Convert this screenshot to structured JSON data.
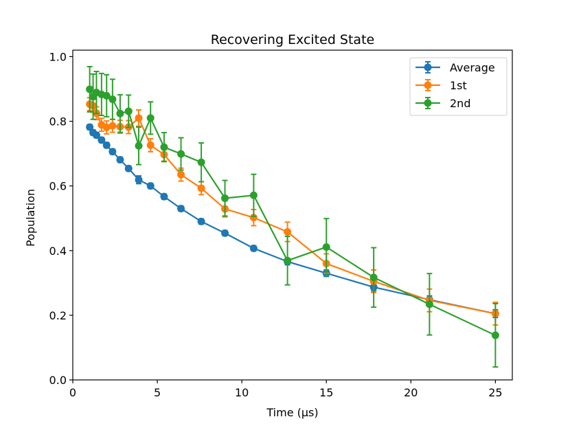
{
  "chart_data": {
    "type": "line",
    "title": "Recovering Excited State",
    "xlabel": "Time (μs)",
    "ylabel": "Population",
    "xlim": [
      0,
      26
    ],
    "ylim": [
      0,
      1.02
    ],
    "xticks": [
      0,
      5,
      10,
      15,
      20,
      25
    ],
    "yticks": [
      0.0,
      0.2,
      0.4,
      0.6,
      0.8,
      1.0
    ],
    "xtick_labels": [
      "0",
      "5",
      "10",
      "15",
      "20",
      "25"
    ],
    "ytick_labels": [
      "0.0",
      "0.2",
      "0.4",
      "0.6",
      "0.8",
      "1.0"
    ],
    "grid": false,
    "legend_position": "top-right",
    "series": [
      {
        "name": "Average",
        "color": "#1f77b4",
        "x": [
          1.0,
          1.2,
          1.4,
          1.7,
          2.0,
          2.35,
          2.8,
          3.3,
          3.9,
          4.6,
          5.4,
          6.4,
          7.6,
          9.0,
          10.7,
          12.7,
          15.0,
          17.8,
          21.1,
          25.0
        ],
        "y": [
          0.782,
          0.765,
          0.757,
          0.742,
          0.726,
          0.706,
          0.681,
          0.654,
          0.619,
          0.6,
          0.567,
          0.53,
          0.49,
          0.454,
          0.407,
          0.366,
          0.33,
          0.287,
          0.248,
          0.205
        ],
        "err": [
          0.008,
          0.008,
          0.008,
          0.008,
          0.008,
          0.008,
          0.008,
          0.008,
          0.012,
          0.008,
          0.008,
          0.008,
          0.008,
          0.008,
          0.008,
          0.01,
          0.01,
          0.012,
          0.012,
          0.012
        ]
      },
      {
        "name": "1st",
        "color": "#ff7f0e",
        "x": [
          1.0,
          1.2,
          1.4,
          1.7,
          2.0,
          2.35,
          2.8,
          3.3,
          3.9,
          4.6,
          5.4,
          6.4,
          7.6,
          9.0,
          10.7,
          12.7,
          15.0,
          17.8,
          21.1,
          25.0
        ],
        "y": [
          0.853,
          0.848,
          0.825,
          0.789,
          0.781,
          0.786,
          0.783,
          0.782,
          0.81,
          0.726,
          0.697,
          0.635,
          0.593,
          0.529,
          0.502,
          0.458,
          0.36,
          0.305,
          0.246,
          0.205
        ],
        "err": [
          0.02,
          0.02,
          0.02,
          0.02,
          0.02,
          0.02,
          0.02,
          0.02,
          0.025,
          0.02,
          0.02,
          0.02,
          0.02,
          0.025,
          0.025,
          0.03,
          0.03,
          0.035,
          0.035,
          0.035
        ]
      },
      {
        "name": "2nd",
        "color": "#2ca02c",
        "x": [
          1.0,
          1.2,
          1.4,
          1.7,
          2.0,
          2.35,
          2.8,
          3.3,
          3.9,
          4.6,
          5.4,
          6.4,
          7.6,
          9.0,
          10.7,
          12.7,
          15.0,
          17.8,
          21.1,
          25.0
        ],
        "y": [
          0.899,
          0.876,
          0.889,
          0.883,
          0.879,
          0.868,
          0.824,
          0.831,
          0.724,
          0.81,
          0.72,
          0.699,
          0.673,
          0.562,
          0.571,
          0.369,
          0.411,
          0.317,
          0.234,
          0.138
        ],
        "err": [
          0.07,
          0.07,
          0.065,
          0.065,
          0.065,
          0.062,
          0.058,
          0.05,
          0.058,
          0.05,
          0.045,
          0.05,
          0.06,
          0.055,
          0.065,
          0.075,
          0.088,
          0.092,
          0.095,
          0.098
        ]
      }
    ]
  }
}
